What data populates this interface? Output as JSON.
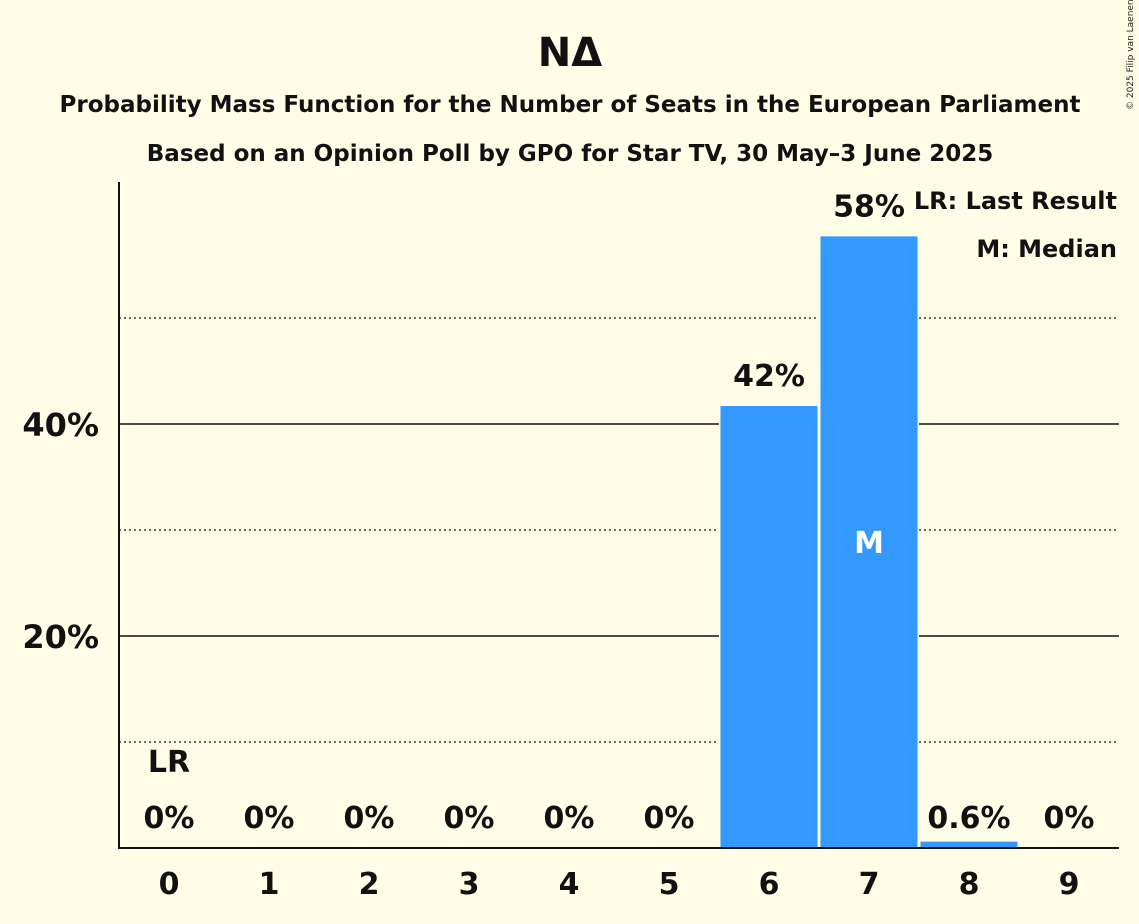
{
  "chart_data": {
    "type": "bar",
    "title": "ΝΔ",
    "subtitle_1": "Probability Mass Function for the Number of Seats in the European Parliament",
    "subtitle_2": "Based on an Opinion Poll by GPO for Star TV, 30 May–3 June 2025",
    "categories": [
      "0",
      "1",
      "2",
      "3",
      "4",
      "5",
      "6",
      "7",
      "8",
      "9"
    ],
    "values": [
      0,
      0,
      0,
      0,
      0,
      0,
      41.7,
      57.7,
      0.6,
      0
    ],
    "value_labels": [
      "0%",
      "0%",
      "0%",
      "0%",
      "0%",
      "0%",
      "42%",
      "58%",
      "0.6%",
      "0%"
    ],
    "ylim": [
      0,
      63
    ],
    "y_ticks": [
      {
        "value": 20,
        "label": "20%"
      },
      {
        "value": 40,
        "label": "40%"
      }
    ],
    "minor_gridlines": [
      10,
      30,
      50
    ],
    "last_result_index": 0,
    "last_result_marker": "LR",
    "median_index": 7,
    "median_marker": "M",
    "legend": [
      "LR: Last Result",
      "M: Median"
    ],
    "legend_position": "top-right",
    "bar_color": "#3399ff",
    "background_color": "#fffde6",
    "copyright": "© 2025 Filip van Laenen"
  }
}
